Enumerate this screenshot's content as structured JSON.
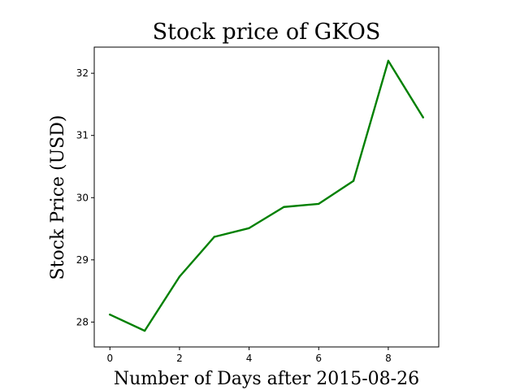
{
  "chart_data": {
    "type": "line",
    "title": "Stock price of GKOS",
    "xlabel": "Number of Days after 2015-08-26",
    "ylabel": "Stock Price (USD)",
    "x": [
      0,
      1,
      2,
      3,
      4,
      5,
      6,
      7,
      8,
      9
    ],
    "series": [
      {
        "values": [
          28.12,
          27.86,
          28.73,
          29.37,
          29.51,
          29.85,
          29.9,
          30.27,
          32.2,
          31.29
        ],
        "color": "#008000"
      }
    ],
    "xlim": [
      -0.45,
      9.45
    ],
    "ylim": [
      27.6,
      32.42
    ],
    "xticks": [
      0,
      2,
      4,
      6,
      8
    ],
    "yticks": [
      28,
      29,
      30,
      31,
      32
    ],
    "grid": false,
    "legend": "none"
  }
}
